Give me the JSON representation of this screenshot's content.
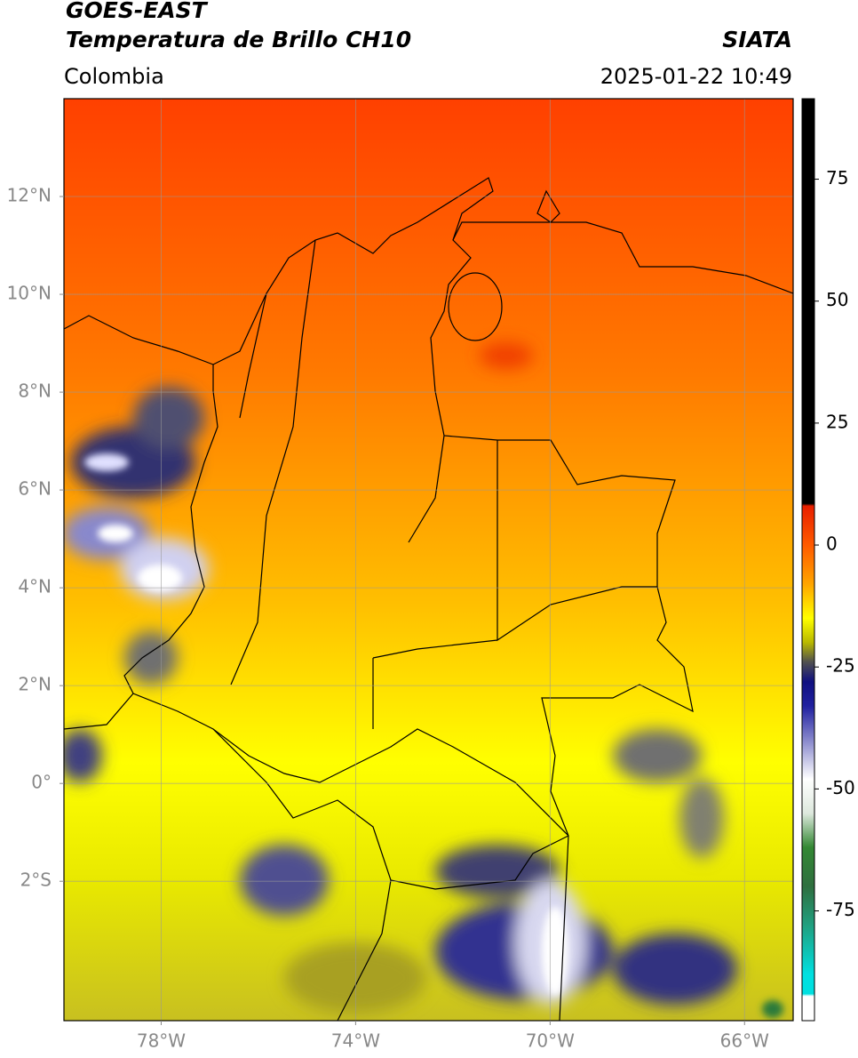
{
  "chart_data": {
    "type": "map",
    "title": "GOES-EAST",
    "subtitle": "Temperatura de Brillo CH10",
    "source": "SIATA",
    "region": "Colombia",
    "datetime": "2025-01-22 10:49",
    "xlim": [
      -80,
      -65
    ],
    "ylim": [
      -4.85,
      14
    ],
    "xticks": [
      {
        "value": -78,
        "label": "78°W"
      },
      {
        "value": -74,
        "label": "74°W"
      },
      {
        "value": -70,
        "label": "70°W"
      },
      {
        "value": -66,
        "label": "66°W"
      }
    ],
    "yticks": [
      {
        "value": 12,
        "label": "12°N"
      },
      {
        "value": 10,
        "label": "10°N"
      },
      {
        "value": 8,
        "label": "8°N"
      },
      {
        "value": 6,
        "label": "6°N"
      },
      {
        "value": 4,
        "label": "4°N"
      },
      {
        "value": 2,
        "label": "2°N"
      },
      {
        "value": 0,
        "label": "0°"
      },
      {
        "value": -2,
        "label": "2°S"
      }
    ],
    "grid": true,
    "clim": [
      -97.5,
      91.5
    ],
    "cticks": [
      75,
      50,
      25,
      0,
      -25,
      -50,
      -75
    ],
    "colormap": [
      {
        "value": 91.5,
        "color": "#000000"
      },
      {
        "value": 8.5,
        "color": "#000000"
      },
      {
        "value": 8,
        "color": "#e81f00"
      },
      {
        "value": 0,
        "color": "#ff5a00"
      },
      {
        "value": -8,
        "color": "#ffa500"
      },
      {
        "value": -15,
        "color": "#ffff00"
      },
      {
        "value": -20,
        "color": "#b8b800"
      },
      {
        "value": -24,
        "color": "#505050"
      },
      {
        "value": -28,
        "color": "#101080"
      },
      {
        "value": -33,
        "color": "#2020a0"
      },
      {
        "value": -40,
        "color": "#8888cc"
      },
      {
        "value": -48,
        "color": "#ffffff"
      },
      {
        "value": -55,
        "color": "#dde8dd"
      },
      {
        "value": -62,
        "color": "#338833"
      },
      {
        "value": -70,
        "color": "#2f6f3f"
      },
      {
        "value": -78,
        "color": "#20a080"
      },
      {
        "value": -88,
        "color": "#00e0e0"
      },
      {
        "value": -92,
        "color": "#00e0e0"
      },
      {
        "value": -92.5,
        "color": "#ffffff"
      },
      {
        "value": -97.5,
        "color": "#ffffff"
      }
    ]
  }
}
